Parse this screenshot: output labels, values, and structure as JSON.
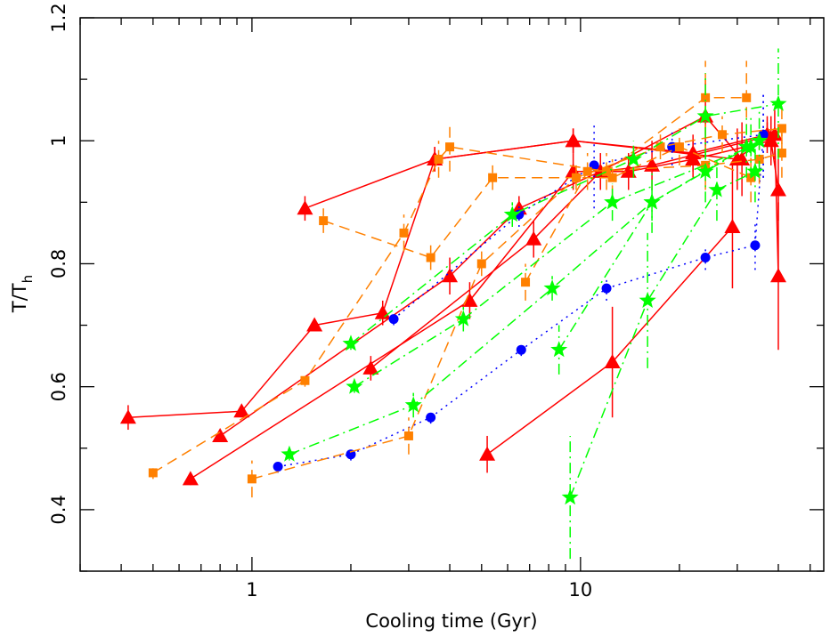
{
  "chart_data": {
    "type": "scatter",
    "title": "",
    "xlabel": "Cooling time (Gyr)",
    "ylabel": "T/T",
    "ylabel_subscript": "h",
    "xscale": "log",
    "xlim": [
      0.3,
      55
    ],
    "ylim": [
      0.3,
      1.2
    ],
    "xticks": [
      1,
      10
    ],
    "xtick_labels": [
      "1",
      "10"
    ],
    "yticks": [
      0.4,
      0.6,
      0.8,
      1.0,
      1.2
    ],
    "ytick_labels": [
      "0.4",
      "0.6",
      "0.8",
      "1",
      "1.2"
    ],
    "grid": false,
    "legend": "none",
    "series": [
      {
        "color": "#ff0000",
        "marker": "triangle",
        "line": "solid",
        "points": [
          [
            0.42,
            0.55
          ],
          [
            0.93,
            0.56
          ],
          [
            1.55,
            0.7
          ],
          [
            2.5,
            0.72
          ],
          [
            3.6,
            0.97
          ],
          [
            9.5,
            1.0
          ],
          [
            30,
            0.97
          ],
          [
            37,
            1.01
          ]
        ],
        "err": [
          0.02,
          0.01,
          0.01,
          0.02,
          0.02,
          0.02,
          0.05,
          0.02
        ]
      },
      {
        "color": "#ff0000",
        "marker": "triangle",
        "line": "solid",
        "points": [
          [
            1.45,
            0.89
          ],
          [
            3.6,
            0.97
          ],
          [
            9.5,
            1.0
          ],
          [
            22,
            0.98
          ],
          [
            37,
            1.01
          ]
        ],
        "err": [
          0.02,
          0.02,
          0.02,
          0.03,
          0.03
        ]
      },
      {
        "color": "#ff0000",
        "marker": "triangle",
        "line": "solid",
        "points": [
          [
            0.8,
            0.52
          ],
          [
            4.0,
            0.78
          ],
          [
            6.5,
            0.89
          ],
          [
            11.5,
            0.95
          ],
          [
            24,
            1.04
          ],
          [
            31,
            0.97
          ]
        ],
        "err": [
          0.01,
          0.03,
          0.02,
          0.02,
          0.06,
          0.06
        ]
      },
      {
        "color": "#ff0000",
        "marker": "triangle",
        "line": "solid",
        "points": [
          [
            0.65,
            0.45
          ],
          [
            4.6,
            0.74
          ],
          [
            9.5,
            0.95
          ],
          [
            14,
            0.95
          ],
          [
            22,
            0.97
          ],
          [
            38,
            1.0
          ],
          [
            40,
            0.92
          ]
        ],
        "err": [
          0.01,
          0.03,
          0.03,
          0.03,
          0.03,
          0.04,
          0.05
        ]
      },
      {
        "color": "#ff0000",
        "marker": "triangle",
        "line": "solid",
        "points": [
          [
            2.3,
            0.63
          ],
          [
            7.2,
            0.84
          ],
          [
            11.5,
            0.95
          ],
          [
            16.5,
            0.96
          ],
          [
            39,
            1.01
          ],
          [
            40,
            0.78
          ]
        ],
        "err": [
          0.02,
          0.03,
          0.03,
          0.04,
          0.04,
          0.12
        ]
      },
      {
        "color": "#ff0000",
        "marker": "triangle",
        "line": "solid",
        "points": [
          [
            5.2,
            0.49
          ],
          [
            12.5,
            0.64
          ],
          [
            29,
            0.86
          ]
        ],
        "err": [
          0.03,
          0.09,
          0.1
        ]
      },
      {
        "color": "#0000ff",
        "marker": "circle",
        "line": "dotted",
        "points": [
          [
            1.2,
            0.47
          ],
          [
            2.0,
            0.49
          ],
          [
            3.5,
            0.55
          ],
          [
            6.6,
            0.66
          ],
          [
            12,
            0.76
          ],
          [
            24,
            0.81
          ],
          [
            34,
            0.83
          ],
          [
            36,
            1.01
          ]
        ],
        "err": [
          0.01,
          0.01,
          0.01,
          0.01,
          0.02,
          0.02,
          0.04,
          0.07
        ]
      },
      {
        "color": "#0000ff",
        "marker": "circle",
        "line": "dotted",
        "points": [
          [
            2.7,
            0.71
          ],
          [
            6.5,
            0.88
          ],
          [
            11,
            0.96
          ],
          [
            19,
            0.99
          ],
          [
            36,
            1.01
          ]
        ],
        "err": [
          0.01,
          0.02,
          0.07,
          0.03,
          0.07
        ]
      },
      {
        "color": "#ff8000",
        "marker": "square",
        "line": "dashed",
        "points": [
          [
            0.5,
            0.46
          ],
          [
            1.45,
            0.61
          ],
          [
            2.9,
            0.85
          ],
          [
            3.7,
            0.97
          ],
          [
            4.0,
            0.99
          ],
          [
            12,
            0.95
          ],
          [
            24,
            1.07
          ],
          [
            32,
            1.07
          ]
        ],
        "err": [
          0.01,
          0.01,
          0.03,
          0.03,
          0.04,
          0.03,
          0.06,
          0.06
        ]
      },
      {
        "color": "#ff8000",
        "marker": "square",
        "line": "dashed",
        "points": [
          [
            1.0,
            0.45
          ],
          [
            3.0,
            0.52
          ],
          [
            5.0,
            0.8
          ],
          [
            9.7,
            0.94
          ],
          [
            17.5,
            0.99
          ],
          [
            27,
            1.01
          ],
          [
            41,
            1.02
          ]
        ],
        "err": [
          0.03,
          0.03,
          0.02,
          0.02,
          0.02,
          0.03,
          0.04
        ]
      },
      {
        "color": "#ff8000",
        "marker": "square",
        "line": "dashed",
        "points": [
          [
            1.65,
            0.87
          ],
          [
            3.5,
            0.81
          ],
          [
            5.4,
            0.94
          ],
          [
            12.5,
            0.94
          ],
          [
            20,
            0.99
          ],
          [
            33,
            0.94
          ]
        ],
        "err": [
          0.02,
          0.02,
          0.02,
          0.03,
          0.03,
          0.04
        ]
      },
      {
        "color": "#ff8000",
        "marker": "square",
        "line": "dashed",
        "points": [
          [
            6.8,
            0.77
          ],
          [
            10.5,
            0.95
          ],
          [
            24,
            0.96
          ],
          [
            35,
            0.97
          ],
          [
            41,
            0.98
          ]
        ],
        "err": [
          0.03,
          0.03,
          0.04,
          0.04,
          0.04
        ]
      },
      {
        "color": "#00ff00",
        "marker": "star",
        "line": "dashdot",
        "points": [
          [
            1.3,
            0.49
          ],
          [
            3.1,
            0.57
          ],
          [
            8.2,
            0.76
          ],
          [
            16.5,
            0.9
          ],
          [
            24,
            0.95
          ],
          [
            35,
            1.0
          ]
        ],
        "err": [
          0.01,
          0.02,
          0.02,
          0.03,
          0.05,
          0.05
        ]
      },
      {
        "color": "#00ff00",
        "marker": "star",
        "line": "dashdot",
        "points": [
          [
            2.0,
            0.67
          ],
          [
            6.2,
            0.88
          ],
          [
            14.5,
            0.97
          ],
          [
            24,
            1.04
          ],
          [
            40,
            1.06
          ]
        ],
        "err": [
          0.01,
          0.02,
          0.03,
          0.07,
          0.09
        ]
      },
      {
        "color": "#00ff00",
        "marker": "star",
        "line": "dashdot",
        "points": [
          [
            2.05,
            0.6
          ],
          [
            4.4,
            0.71
          ],
          [
            12.5,
            0.9
          ],
          [
            33,
            0.99
          ]
        ],
        "err": [
          0.01,
          0.02,
          0.03,
          0.05
        ]
      },
      {
        "color": "#00ff00",
        "marker": "star",
        "line": "dashdot",
        "points": [
          [
            9.3,
            0.42
          ],
          [
            16,
            0.74
          ],
          [
            26,
            0.92
          ],
          [
            34,
            0.95
          ]
        ],
        "err": [
          0.1,
          0.11,
          0.05,
          0.05
        ]
      },
      {
        "color": "#00ff00",
        "marker": "star",
        "line": "dashdot",
        "points": [
          [
            8.6,
            0.66
          ],
          [
            16.5,
            0.9
          ],
          [
            32,
            0.99
          ]
        ],
        "err": [
          0.04,
          0.05,
          0.05
        ]
      }
    ]
  }
}
